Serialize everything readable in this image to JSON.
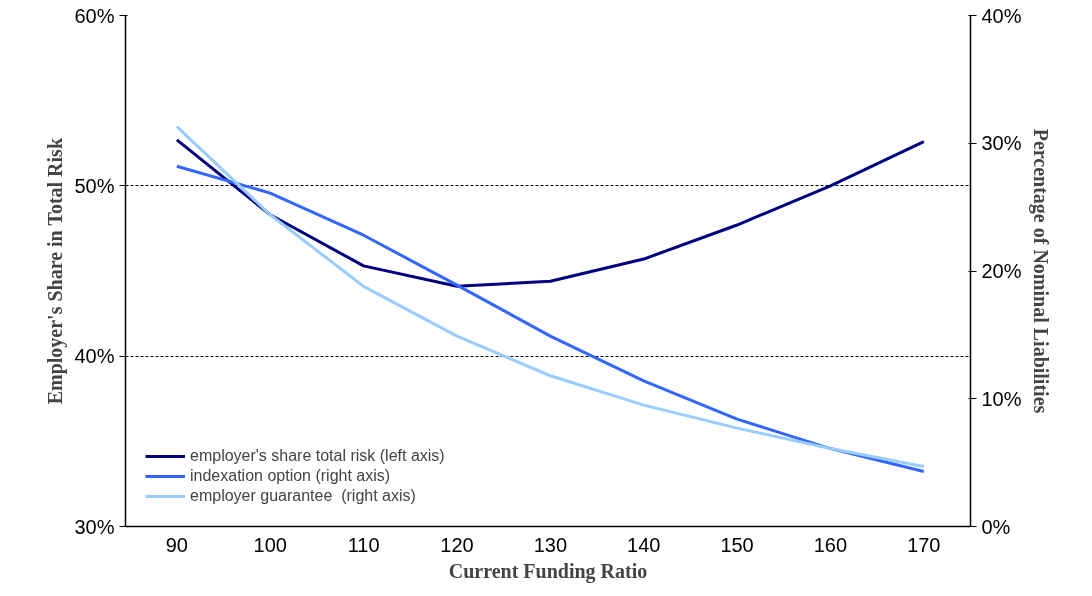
{
  "chart_data": {
    "type": "line",
    "xlabel": "Current Funding Ratio",
    "ylabel": "Employer's Share in Total Risk",
    "y2label": "Percentage of Nominal Liabilities",
    "categories": [
      "90",
      "100",
      "110",
      "120",
      "130",
      "140",
      "150",
      "160",
      "170"
    ],
    "series": [
      {
        "name": "employer's share total risk (left axis)",
        "color": "#000080",
        "values": [
          52.7,
          48.3,
          45.3,
          44.1,
          44.4,
          45.7,
          47.7,
          50.0,
          52.6
        ]
      },
      {
        "name": "indexation option (right axis)",
        "color": "#3366ff",
        "axis": "y2",
        "values": [
          28.2,
          26.1,
          22.8,
          18.9,
          14.9,
          11.4,
          8.4,
          6.1,
          4.3
        ]
      },
      {
        "name": "employer guarantee  (right axis)",
        "color": "#99ccff",
        "axis": "y2",
        "values": [
          31.3,
          24.4,
          18.8,
          14.9,
          11.8,
          9.5,
          7.7,
          6.1,
          4.7
        ]
      }
    ],
    "ylim": [
      30,
      60
    ],
    "yticks": [
      {
        "value": 30,
        "label": "30%"
      },
      {
        "value": 40,
        "label": "40%"
      },
      {
        "value": 50,
        "label": "50%"
      },
      {
        "value": 60,
        "label": "60%"
      }
    ],
    "y2lim": [
      0,
      40
    ],
    "y2ticks": [
      {
        "value": 0,
        "label": "0%"
      },
      {
        "value": 10,
        "label": "10%"
      },
      {
        "value": 20,
        "label": "20%"
      },
      {
        "value": 30,
        "label": "30%"
      },
      {
        "value": 40,
        "label": "40%"
      }
    ],
    "grid": "y",
    "legend": "bottom left",
    "line_style": "solid",
    "marker": "none"
  }
}
